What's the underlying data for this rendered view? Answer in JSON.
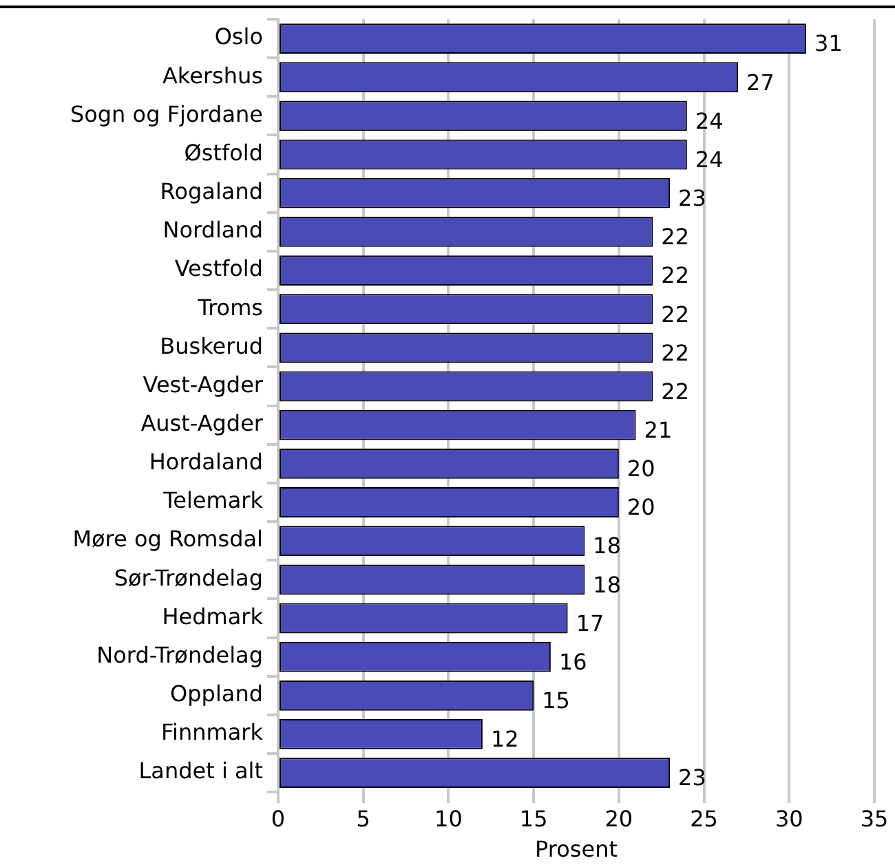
{
  "chart_data": {
    "type": "bar",
    "orientation": "horizontal",
    "xlabel": "Prosent",
    "categories": [
      "Oslo",
      "Akershus",
      "Sogn og Fjordane",
      "Østfold",
      "Rogaland",
      "Nordland",
      "Vestfold",
      "Troms",
      "Buskerud",
      "Vest-Agder",
      "Aust-Agder",
      "Hordaland",
      "Telemark",
      "Møre og Romsdal",
      "Sør-Trøndelag",
      "Hedmark",
      "Nord-Trøndelag",
      "Oppland",
      "Finnmark",
      "Landet i alt"
    ],
    "values": [
      31,
      27,
      24,
      24,
      23,
      22,
      22,
      22,
      22,
      22,
      21,
      20,
      20,
      18,
      18,
      17,
      16,
      15,
      12,
      23
    ],
    "color": "#4b4bb8",
    "xlim": [
      0,
      35
    ],
    "xticks": [
      0,
      5,
      10,
      15,
      20,
      25,
      30,
      35
    ],
    "grid": "x",
    "data_labels": true,
    "legend": false
  }
}
